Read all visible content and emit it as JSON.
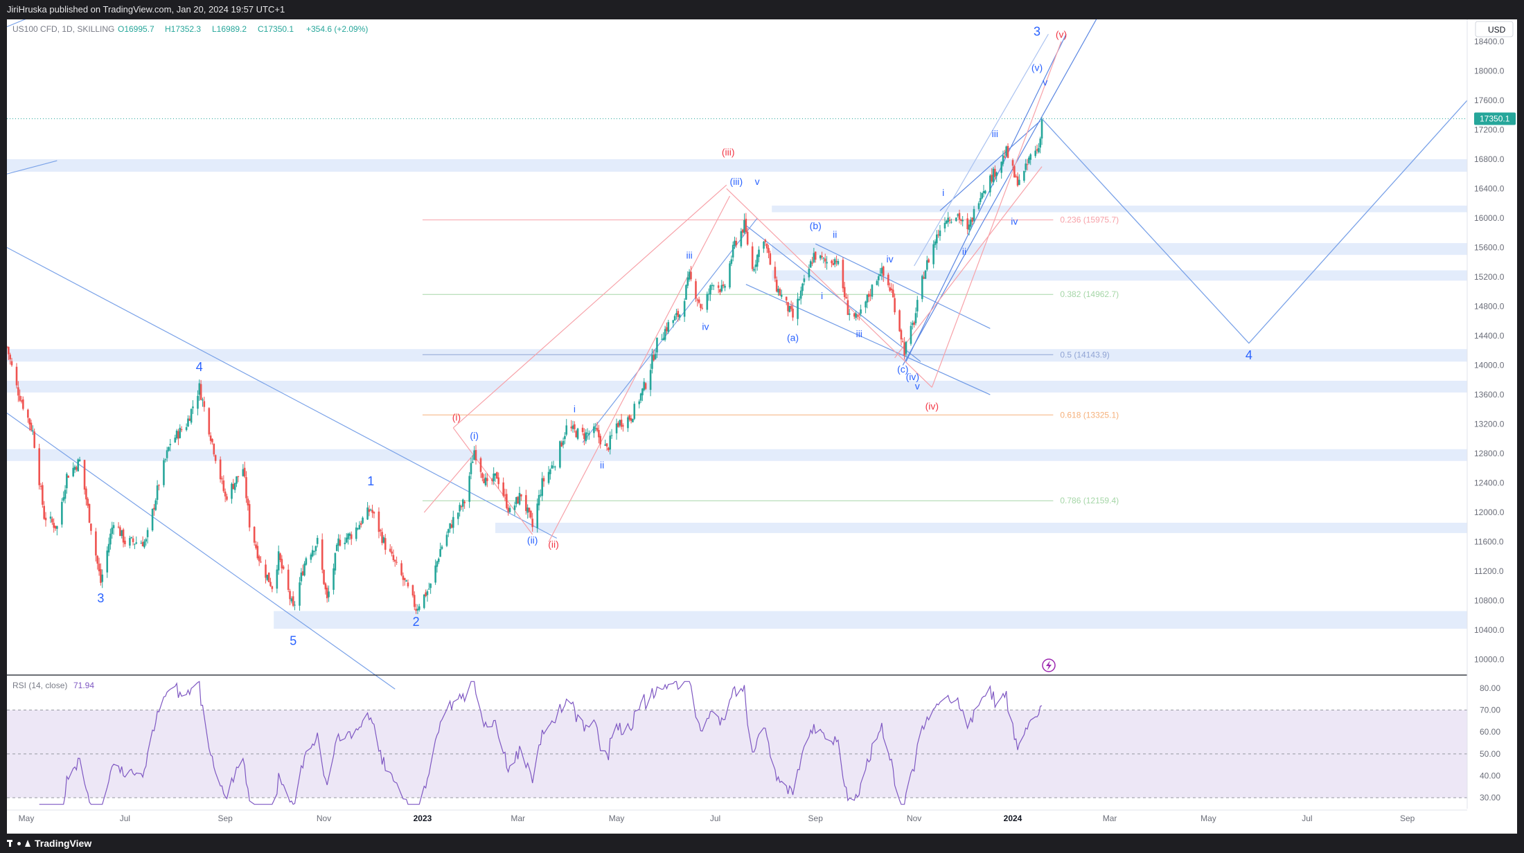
{
  "header": {
    "publish_line": "JiriHruska published on TradingView.com, Jan 20, 2024 19:57 UTC+1"
  },
  "symbol": {
    "name": "US100 CFD, 1D, SKILLING",
    "open": "O16995.7",
    "high": "H17352.3",
    "low": "L16989.2",
    "close": "C17350.1",
    "change": "+354.6 (+2.09%)"
  },
  "currency": "USD",
  "last_price": "17350.1",
  "colors": {
    "up": "#26a69a",
    "down": "#ef5350",
    "wave_blue": "#2962ff",
    "wave_red": "#f23645",
    "band": "#e3ecfb",
    "rsi": "#7e57c2"
  },
  "chart_data": [
    {
      "type": "candlestick",
      "title": "US100 CFD, 1D, SKILLING",
      "y_axis": {
        "ylim": [
          9800,
          18700
        ],
        "ticks": [
          10000,
          10400,
          10800,
          11200,
          11600,
          12000,
          12400,
          12800,
          13200,
          13600,
          14000,
          14400,
          14800,
          15200,
          15600,
          16000,
          16400,
          16800,
          17200,
          17600,
          18000,
          18400
        ],
        "tick_labels": [
          "10000.0",
          "10400.0",
          "10800.0",
          "11200.0",
          "11600.0",
          "12000.0",
          "12400.0",
          "12800.0",
          "13200.0",
          "13600.0",
          "14000.0",
          "14400.0",
          "14800.0",
          "15200.0",
          "15600.0",
          "16000.0",
          "16400.0",
          "16800.0",
          "17200.0",
          "17600.0",
          "18000.0",
          "18400.0"
        ]
      },
      "x_axis": {
        "range": [
          "2022-04-19",
          "2024-10-08"
        ],
        "ticks": [
          {
            "date": "2022-05-01",
            "label": "May"
          },
          {
            "date": "2022-07-01",
            "label": "Jul"
          },
          {
            "date": "2022-09-01",
            "label": "Sep"
          },
          {
            "date": "2022-11-01",
            "label": "Nov"
          },
          {
            "date": "2023-01-01",
            "label": "2023"
          },
          {
            "date": "2023-03-01",
            "label": "Mar"
          },
          {
            "date": "2023-05-01",
            "label": "May"
          },
          {
            "date": "2023-07-01",
            "label": "Jul"
          },
          {
            "date": "2023-09-01",
            "label": "Sep"
          },
          {
            "date": "2023-11-01",
            "label": "Nov"
          },
          {
            "date": "2024-01-01",
            "label": "2024"
          },
          {
            "date": "2024-03-01",
            "label": "Mar"
          },
          {
            "date": "2024-05-01",
            "label": "May"
          },
          {
            "date": "2024-07-01",
            "label": "Jul"
          },
          {
            "date": "2024-09-01",
            "label": "Sep"
          }
        ]
      },
      "price_path": [
        [
          "2022-04-19",
          14250
        ],
        [
          "2022-04-25",
          13700
        ],
        [
          "2022-05-05",
          13100
        ],
        [
          "2022-05-12",
          11950
        ],
        [
          "2022-05-20",
          11800
        ],
        [
          "2022-05-26",
          12500
        ],
        [
          "2022-06-03",
          12700
        ],
        [
          "2022-06-10",
          11800
        ],
        [
          "2022-06-16",
          11050
        ],
        [
          "2022-06-24",
          11900
        ],
        [
          "2022-07-01",
          11600
        ],
        [
          "2022-07-14",
          11600
        ],
        [
          "2022-07-22",
          12400
        ],
        [
          "2022-07-29",
          12950
        ],
        [
          "2022-08-08",
          13200
        ],
        [
          "2022-08-16",
          13700
        ],
        [
          "2022-08-24",
          12950
        ],
        [
          "2022-09-01",
          12200
        ],
        [
          "2022-09-12",
          12600
        ],
        [
          "2022-09-16",
          11850
        ],
        [
          "2022-09-23",
          11300
        ],
        [
          "2022-09-30",
          11000
        ],
        [
          "2022-10-04",
          11400
        ],
        [
          "2022-10-13",
          10680
        ],
        [
          "2022-10-21",
          11400
        ],
        [
          "2022-10-28",
          11600
        ],
        [
          "2022-11-03",
          10800
        ],
        [
          "2022-11-10",
          11600
        ],
        [
          "2022-11-18",
          11700
        ],
        [
          "2022-11-30",
          12050
        ],
        [
          "2022-12-09",
          11550
        ],
        [
          "2022-12-15",
          11300
        ],
        [
          "2022-12-22",
          11000
        ],
        [
          "2022-12-28",
          10700
        ],
        [
          "2023-01-06",
          11000
        ],
        [
          "2023-01-12",
          11500
        ],
        [
          "2023-01-20",
          11900
        ],
        [
          "2023-01-27",
          12150
        ],
        [
          "2023-02-02",
          12850
        ],
        [
          "2023-02-10",
          12350
        ],
        [
          "2023-02-16",
          12500
        ],
        [
          "2023-02-24",
          12000
        ],
        [
          "2023-03-03",
          12250
        ],
        [
          "2023-03-10",
          11800
        ],
        [
          "2023-03-16",
          12400
        ],
        [
          "2023-03-24",
          12700
        ],
        [
          "2023-03-31",
          13150
        ],
        [
          "2023-04-10",
          13050
        ],
        [
          "2023-04-18",
          13100
        ],
        [
          "2023-04-25",
          12850
        ],
        [
          "2023-05-01",
          13200
        ],
        [
          "2023-05-10",
          13300
        ],
        [
          "2023-05-19",
          13750
        ],
        [
          "2023-05-26",
          14300
        ],
        [
          "2023-06-02",
          14550
        ],
        [
          "2023-06-09",
          14700
        ],
        [
          "2023-06-15",
          15200
        ],
        [
          "2023-06-23",
          14750
        ],
        [
          "2023-06-30",
          15150
        ],
        [
          "2023-07-06",
          15000
        ],
        [
          "2023-07-13",
          15650
        ],
        [
          "2023-07-19",
          15900
        ],
        [
          "2023-07-24",
          15300
        ],
        [
          "2023-07-31",
          15750
        ],
        [
          "2023-08-07",
          15100
        ],
        [
          "2023-08-18",
          14650
        ],
        [
          "2023-08-24",
          15050
        ],
        [
          "2023-08-31",
          15500
        ],
        [
          "2023-09-07",
          15400
        ],
        [
          "2023-09-14",
          15450
        ],
        [
          "2023-09-21",
          14750
        ],
        [
          "2023-09-27",
          14600
        ],
        [
          "2023-10-02",
          14850
        ],
        [
          "2023-10-11",
          15300
        ],
        [
          "2023-10-18",
          15000
        ],
        [
          "2023-10-26",
          14200
        ],
        [
          "2023-11-01",
          14600
        ],
        [
          "2023-11-07",
          15250
        ],
        [
          "2023-11-14",
          15700
        ],
        [
          "2023-11-20",
          16000
        ],
        [
          "2023-11-28",
          16050
        ],
        [
          "2023-12-04",
          15800
        ],
        [
          "2023-12-12",
          16350
        ],
        [
          "2023-12-20",
          16600
        ],
        [
          "2023-12-28",
          16900
        ],
        [
          "2024-01-03",
          16500
        ],
        [
          "2024-01-08",
          16600
        ],
        [
          "2024-01-12",
          16850
        ],
        [
          "2024-01-17",
          16950
        ],
        [
          "2024-01-19",
          17350
        ]
      ],
      "last_close": 17350.1,
      "fibonacci": [
        {
          "ratio": "0.236",
          "price": 15975.7,
          "label": "0.236 (15975.7)",
          "color": "#f7a1a8"
        },
        {
          "ratio": "0.382",
          "price": 14962.7,
          "label": "0.382 (14962.7)",
          "color": "#a5d6a7"
        },
        {
          "ratio": "0.5",
          "price": 14143.9,
          "label": "0.5 (14143.9)",
          "color": "#90a4d4"
        },
        {
          "ratio": "0.618",
          "price": 13325.1,
          "label": "0.618 (13325.1)",
          "color": "#f5b07a"
        },
        {
          "ratio": "0.786",
          "price": 12159.4,
          "label": "0.786 (12159.4)",
          "color": "#a5d6a7"
        }
      ],
      "zones": [
        {
          "price_low": 16630,
          "price_high": 16800,
          "date_from": "2022-04-19",
          "date_to": "2024-10-08"
        },
        {
          "price_low": 16080,
          "price_high": 16170,
          "date_from": "2023-08-05",
          "date_to": "2024-10-08"
        },
        {
          "price_low": 15500,
          "price_high": 15660,
          "date_from": "2023-08-05",
          "date_to": "2024-10-08"
        },
        {
          "price_low": 15150,
          "price_high": 15290,
          "date_from": "2023-08-05",
          "date_to": "2024-10-08"
        },
        {
          "price_low": 14050,
          "price_high": 14220,
          "date_from": "2022-04-19",
          "date_to": "2024-10-08"
        },
        {
          "price_low": 13630,
          "price_high": 13790,
          "date_from": "2022-04-19",
          "date_to": "2024-10-08"
        },
        {
          "price_low": 12700,
          "price_high": 12860,
          "date_from": "2022-04-19",
          "date_to": "2024-10-08"
        },
        {
          "price_low": 11720,
          "price_high": 11860,
          "date_from": "2023-02-15",
          "date_to": "2024-10-08"
        },
        {
          "price_low": 10420,
          "price_high": 10660,
          "date_from": "2022-10-01",
          "date_to": "2024-10-08"
        }
      ],
      "wave_labels": [
        {
          "text": "3",
          "date": "2022-06-16",
          "price": 10780,
          "color": "blue"
        },
        {
          "text": "4",
          "date": "2022-08-16",
          "price": 13920,
          "color": "blue"
        },
        {
          "text": "5",
          "date": "2022-10-13",
          "price": 10200,
          "color": "blue"
        },
        {
          "text": "1",
          "date": "2022-11-30",
          "price": 12370,
          "color": "blue"
        },
        {
          "text": "2",
          "date": "2022-12-28",
          "price": 10460,
          "color": "blue"
        },
        {
          "text": "(i)",
          "date": "2023-02-02",
          "price": 13000,
          "color": "blue"
        },
        {
          "text": "(i)",
          "date": "2023-01-22",
          "price": 13250,
          "color": "red"
        },
        {
          "text": "(ii)",
          "date": "2023-03-10",
          "price": 11580,
          "color": "blue"
        },
        {
          "text": "(ii)",
          "date": "2023-03-23",
          "price": 11520,
          "color": "red"
        },
        {
          "text": "i",
          "date": "2023-04-05",
          "price": 13360,
          "color": "blue"
        },
        {
          "text": "ii",
          "date": "2023-04-22",
          "price": 12600,
          "color": "blue"
        },
        {
          "text": "iii",
          "date": "2023-06-15",
          "price": 15450,
          "color": "blue"
        },
        {
          "text": "iv",
          "date": "2023-06-25",
          "price": 14480,
          "color": "blue"
        },
        {
          "text": "(iii)",
          "date": "2023-07-14",
          "price": 16450,
          "color": "blue"
        },
        {
          "text": "(iii)",
          "date": "2023-07-09",
          "price": 16850,
          "color": "red"
        },
        {
          "text": "v",
          "date": "2023-07-27",
          "price": 16450,
          "color": "blue"
        },
        {
          "text": "(a)",
          "date": "2023-08-18",
          "price": 14330,
          "color": "blue"
        },
        {
          "text": "(b)",
          "date": "2023-09-01",
          "price": 15850,
          "color": "blue"
        },
        {
          "text": "ii",
          "date": "2023-09-13",
          "price": 15730,
          "color": "blue"
        },
        {
          "text": "i",
          "date": "2023-09-05",
          "price": 14900,
          "color": "blue"
        },
        {
          "text": "iii",
          "date": "2023-09-28",
          "price": 14380,
          "color": "blue"
        },
        {
          "text": "iv",
          "date": "2023-10-17",
          "price": 15400,
          "color": "blue"
        },
        {
          "text": "(c)",
          "date": "2023-10-25",
          "price": 13900,
          "color": "blue"
        },
        {
          "text": "(iv)",
          "date": "2023-10-31",
          "price": 13800,
          "color": "blue"
        },
        {
          "text": "v",
          "date": "2023-11-03",
          "price": 13670,
          "color": "blue"
        },
        {
          "text": "(iv)",
          "date": "2023-11-12",
          "price": 13400,
          "color": "red"
        },
        {
          "text": "i",
          "date": "2023-11-19",
          "price": 16300,
          "color": "blue"
        },
        {
          "text": "ii",
          "date": "2023-12-02",
          "price": 15500,
          "color": "blue"
        },
        {
          "text": "iii",
          "date": "2023-12-21",
          "price": 17100,
          "color": "blue"
        },
        {
          "text": "iv",
          "date": "2024-01-02",
          "price": 15910,
          "color": "blue"
        },
        {
          "text": "(v)",
          "date": "2024-01-16",
          "price": 18000,
          "color": "blue"
        },
        {
          "text": "v",
          "date": "2024-01-21",
          "price": 17800,
          "color": "blue"
        },
        {
          "text": "3",
          "date": "2024-01-16",
          "price": 18480,
          "color": "blue"
        },
        {
          "text": "(v)",
          "date": "2024-01-31",
          "price": 18450,
          "color": "red"
        },
        {
          "text": "4",
          "date": "2024-05-26",
          "price": 14080,
          "color": "blue"
        }
      ],
      "projection": {
        "points": [
          [
            "2024-01-19",
            17350
          ],
          [
            "2024-05-26",
            14300
          ],
          [
            "2024-10-08",
            17600
          ]
        ]
      }
    },
    {
      "type": "line",
      "title": "RSI (14, close)",
      "current_value": "71.94",
      "ylim": [
        25,
        85
      ],
      "ticks": [
        30,
        40,
        50,
        60,
        70,
        80
      ],
      "tick_labels": [
        "30.00",
        "40.00",
        "50.00",
        "60.00",
        "70.00",
        "80.00"
      ],
      "band": [
        30,
        70
      ],
      "line_color": "#7e57c2"
    }
  ]
}
